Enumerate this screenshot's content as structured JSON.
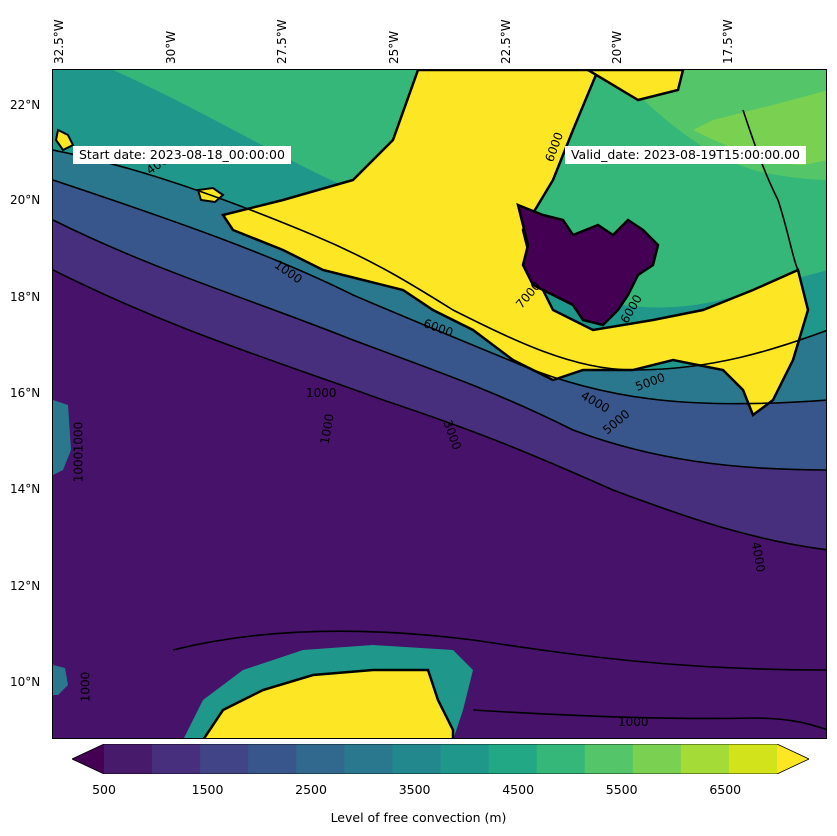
{
  "map": {
    "field": "level-of-free-convection",
    "header": {
      "start_date": "Start date: 2023-08-18_00:00:00",
      "valid_date": "Valid_date: 2023-08-19T15:00:00.00"
    },
    "longitude_labels": [
      "32.5°W",
      "30°W",
      "27.5°W",
      "25°W",
      "22.5°W",
      "20°W",
      "17.5°W"
    ],
    "latitude_labels": [
      "22°N",
      "20°N",
      "18°N",
      "16°N",
      "14°N",
      "12°N",
      "10°N"
    ],
    "contour_labels": [
      "4000",
      "6000",
      "5000",
      "6000",
      "4000",
      "5000",
      "6000",
      "1000",
      "1000",
      "3000",
      "1000",
      "1000",
      "1000",
      "4000",
      "1000",
      "1000",
      "7000"
    ],
    "colorbar": {
      "ticks": [
        "500",
        "1500",
        "2500",
        "3500",
        "4500",
        "5500",
        "6500"
      ],
      "label": "Level of free convection (m)",
      "levels": [
        500,
        1000,
        1500,
        2000,
        2500,
        3000,
        3500,
        4000,
        4500,
        5000,
        5500,
        6000,
        6500,
        7000
      ],
      "colors": [
        "#440154",
        "#481a6c",
        "#472f7d",
        "#414487",
        "#39568c",
        "#31688e",
        "#2a788e",
        "#23888e",
        "#1f988b",
        "#22a884",
        "#35b779",
        "#54c568",
        "#7ad151",
        "#a5db36",
        "#d2e21b",
        "#fde725"
      ],
      "extend": "both"
    }
  }
}
